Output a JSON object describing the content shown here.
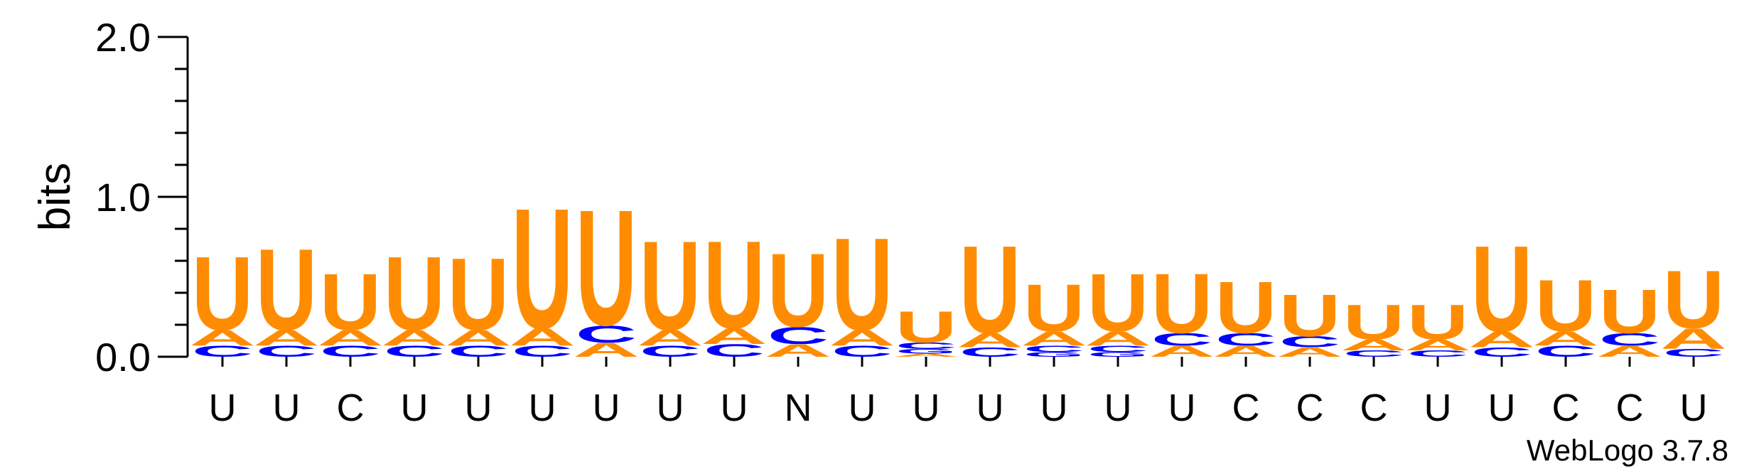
{
  "chart_data": {
    "type": "sequence-logo",
    "ylabel": "bits",
    "ylim": [
      0,
      2.0
    ],
    "yticks": [
      "0.0",
      "1.0",
      "2.0"
    ],
    "credit": "WebLogo 3.7.8",
    "colors": {
      "A": "#FF8C00",
      "U": "#FF8C00",
      "C": "#0000FF",
      "G": "#0000FF"
    },
    "positions": [
      {
        "label": "U",
        "stack": [
          [
            "C",
            0.07
          ],
          [
            "A",
            0.1
          ],
          [
            "U",
            0.47
          ]
        ]
      },
      {
        "label": "U",
        "stack": [
          [
            "C",
            0.07
          ],
          [
            "A",
            0.1
          ],
          [
            "U",
            0.52
          ]
        ]
      },
      {
        "label": "C",
        "stack": [
          [
            "C",
            0.07
          ],
          [
            "A",
            0.1
          ],
          [
            "U",
            0.36
          ]
        ]
      },
      {
        "label": "U",
        "stack": [
          [
            "C",
            0.07
          ],
          [
            "A",
            0.1
          ],
          [
            "U",
            0.47
          ]
        ]
      },
      {
        "label": "U",
        "stack": [
          [
            "C",
            0.07
          ],
          [
            "A",
            0.1
          ],
          [
            "U",
            0.46
          ]
        ]
      },
      {
        "label": "U",
        "stack": [
          [
            "C",
            0.07
          ],
          [
            "A",
            0.11
          ],
          [
            "U",
            0.77
          ]
        ]
      },
      {
        "label": "U",
        "stack": [
          [
            "A",
            0.09
          ],
          [
            "C",
            0.11
          ],
          [
            "U",
            0.74
          ]
        ]
      },
      {
        "label": "U",
        "stack": [
          [
            "C",
            0.07
          ],
          [
            "A",
            0.1
          ],
          [
            "U",
            0.57
          ]
        ]
      },
      {
        "label": "U",
        "stack": [
          [
            "C",
            0.08
          ],
          [
            "A",
            0.1
          ],
          [
            "U",
            0.56
          ]
        ]
      },
      {
        "label": "N",
        "stack": [
          [
            "A",
            0.08
          ],
          [
            "C",
            0.11
          ],
          [
            "U",
            0.47
          ]
        ]
      },
      {
        "label": "U",
        "stack": [
          [
            "C",
            0.07
          ],
          [
            "A",
            0.1
          ],
          [
            "U",
            0.59
          ]
        ]
      },
      {
        "label": "U",
        "stack": [
          [
            "A",
            0.02
          ],
          [
            "G",
            0.03
          ],
          [
            "C",
            0.04
          ],
          [
            "U",
            0.2
          ]
        ]
      },
      {
        "label": "U",
        "stack": [
          [
            "C",
            0.06
          ],
          [
            "A",
            0.09
          ],
          [
            "U",
            0.56
          ]
        ]
      },
      {
        "label": "U",
        "stack": [
          [
            "G",
            0.03
          ],
          [
            "C",
            0.04
          ],
          [
            "A",
            0.09
          ],
          [
            "U",
            0.3
          ]
        ]
      },
      {
        "label": "U",
        "stack": [
          [
            "G",
            0.03
          ],
          [
            "C",
            0.04
          ],
          [
            "A",
            0.09
          ],
          [
            "U",
            0.37
          ]
        ]
      },
      {
        "label": "U",
        "stack": [
          [
            "A",
            0.07
          ],
          [
            "C",
            0.08
          ],
          [
            "U",
            0.38
          ]
        ]
      },
      {
        "label": "C",
        "stack": [
          [
            "A",
            0.07
          ],
          [
            "C",
            0.08
          ],
          [
            "U",
            0.33
          ]
        ]
      },
      {
        "label": "C",
        "stack": [
          [
            "A",
            0.06
          ],
          [
            "C",
            0.07
          ],
          [
            "U",
            0.27
          ]
        ]
      },
      {
        "label": "C",
        "stack": [
          [
            "C",
            0.04
          ],
          [
            "A",
            0.07
          ],
          [
            "U",
            0.22
          ]
        ]
      },
      {
        "label": "U",
        "stack": [
          [
            "C",
            0.04
          ],
          [
            "A",
            0.07
          ],
          [
            "U",
            0.22
          ]
        ]
      },
      {
        "label": "U",
        "stack": [
          [
            "C",
            0.06
          ],
          [
            "A",
            0.1
          ],
          [
            "U",
            0.55
          ]
        ]
      },
      {
        "label": "C",
        "stack": [
          [
            "C",
            0.07
          ],
          [
            "A",
            0.09
          ],
          [
            "U",
            0.33
          ]
        ]
      },
      {
        "label": "C",
        "stack": [
          [
            "A",
            0.07
          ],
          [
            "C",
            0.08
          ],
          [
            "U",
            0.28
          ]
        ]
      },
      {
        "label": "U",
        "stack": [
          [
            "C",
            0.05
          ],
          [
            "A",
            0.13
          ],
          [
            "U",
            0.37
          ]
        ]
      }
    ]
  }
}
